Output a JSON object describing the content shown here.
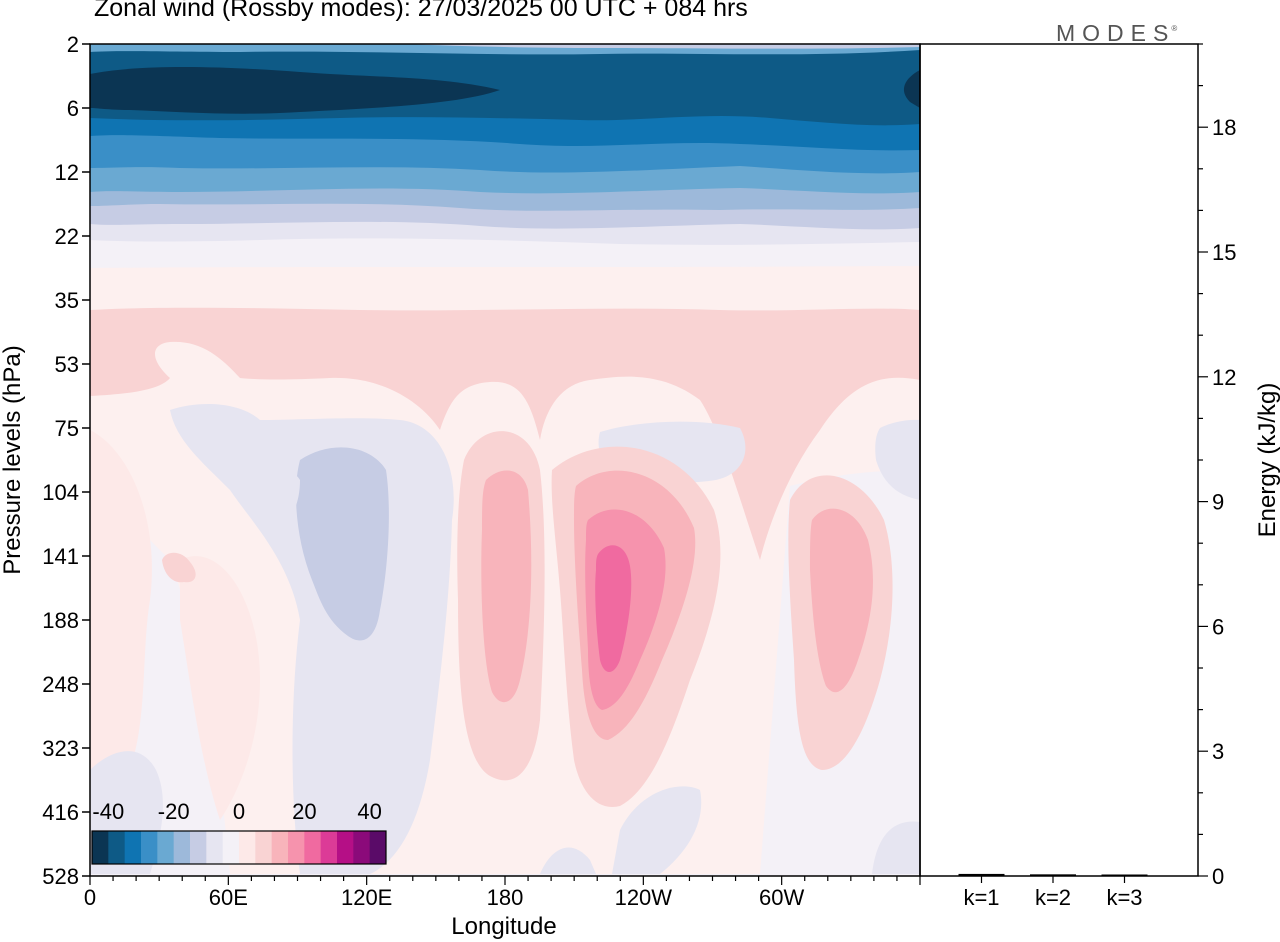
{
  "title": "Zonal wind (Rossby modes):  27/03/2025  00 UTC  + 084 hrs",
  "logo": "MODES",
  "logo_mark": "®",
  "chart_data": [
    {
      "type": "heatmap",
      "title": "Zonal wind (Rossby modes):  27/03/2025  00 UTC  + 084 hrs",
      "xlabel": "Longitude",
      "ylabel": "Pressure levels (hPa)",
      "x_ticks": [
        "0",
        "60E",
        "120E",
        "180",
        "120W",
        "60W"
      ],
      "y_ticks": [
        "2",
        "6",
        "12",
        "22",
        "35",
        "53",
        "75",
        "104",
        "141",
        "188",
        "248",
        "323",
        "416",
        "528"
      ],
      "colorbar": {
        "labels": [
          "-40",
          "-20",
          "0",
          "20",
          "40"
        ],
        "range": [
          -45,
          45
        ],
        "colors": [
          "#0b3553",
          "#0e5a86",
          "#0f74b2",
          "#3a8fc7",
          "#6aa9d2",
          "#9db9da",
          "#c6cce4",
          "#e6e5f1",
          "#f4f1f7",
          "#fde9e8",
          "#f9d3d3",
          "#f8b4bb",
          "#f693ad",
          "#f06aa0",
          "#dc3b97",
          "#b50f86",
          "#8b0a7a",
          "#5a0b68"
        ]
      }
    },
    {
      "type": "bar",
      "categories": [
        "k=1",
        "k=2",
        "k=3"
      ],
      "values": [
        0.05,
        0.04,
        0.02
      ],
      "ylabel": "Energy (kJ/kg)",
      "y_ticks": [
        "0",
        "3",
        "6",
        "9",
        "12",
        "15",
        "18"
      ],
      "ylim": [
        0,
        20
      ]
    }
  ]
}
